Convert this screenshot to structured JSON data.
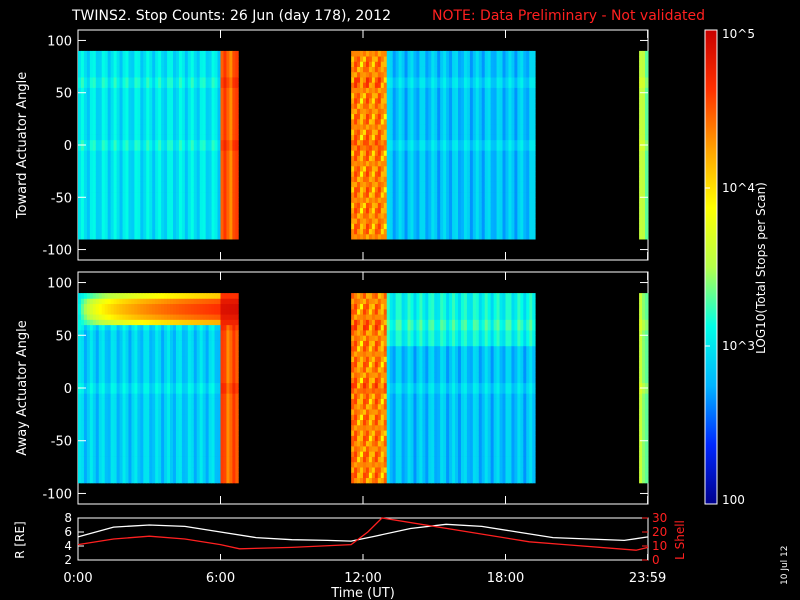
{
  "header": {
    "title": "TWINS2. Stop Counts: 26 Jun (day 178), 2012",
    "note": "NOTE: Data Preliminary - Not validated",
    "note_color": "#ff2020"
  },
  "side_stamp": "10 Jul 12",
  "colorbar": {
    "label": "LOG10(Total Stops per Scan)",
    "ticks": [
      "100",
      "10^3",
      "10^4",
      "10^5"
    ],
    "tick_values": [
      100,
      1000,
      10000,
      100000
    ],
    "scale": "log",
    "range": [
      100,
      100000
    ],
    "colormap": [
      "#00008c",
      "#0028ff",
      "#00b4ff",
      "#00ffe6",
      "#b4ff4b",
      "#ffff00",
      "#ffa000",
      "#ff3000",
      "#c80000"
    ]
  },
  "panels": {
    "toward": {
      "ylabel": "Toward Actuator Angle"
    },
    "away": {
      "ylabel": "Away Actuator Angle"
    },
    "orbit": {
      "left_label": "R [RE]",
      "right_label": "L Shell",
      "r_color": "#ffffff",
      "l_color": "#ff2020"
    }
  },
  "xaxis": {
    "label": "Time (UT)",
    "ticks": [
      "0:00",
      "6:00",
      "12:00",
      "18:00",
      "23:59"
    ],
    "tick_hours": [
      0,
      6,
      12,
      18,
      23.983
    ]
  },
  "chart_data": [
    {
      "type": "heatmap",
      "title": "TWINS2. Stop Counts: 26 Jun (day 178), 2012",
      "xlabel": "Time (UT)",
      "ylabel": "Toward Actuator Angle",
      "xlim_hours": [
        0,
        24
      ],
      "ylim": [
        -110,
        110
      ],
      "y_ticks": [
        -100,
        -50,
        0,
        50,
        100
      ],
      "data_range_deg": [
        -90,
        90
      ],
      "coverage_hours": [
        [
          0,
          6.8
        ],
        [
          11.5,
          19.3
        ],
        [
          23.6,
          24
        ]
      ],
      "approx_counts_by_interval": [
        {
          "hours": [
            0,
            6.0
          ],
          "level": 1000
        },
        {
          "hours": [
            6.0,
            6.8
          ],
          "level": 30000
        },
        {
          "hours": [
            11.5,
            13.0
          ],
          "level": 20000
        },
        {
          "hours": [
            13.0,
            19.3
          ],
          "level": 700
        },
        {
          "hours": [
            23.6,
            24
          ],
          "level": 3000
        }
      ]
    },
    {
      "type": "heatmap",
      "xlabel": "Time (UT)",
      "ylabel": "Away Actuator Angle",
      "xlim_hours": [
        0,
        24
      ],
      "ylim": [
        -110,
        110
      ],
      "y_ticks": [
        -100,
        -50,
        0,
        50,
        100
      ],
      "data_range_deg": [
        -90,
        90
      ],
      "coverage_hours": [
        [
          0,
          6.8
        ],
        [
          11.5,
          19.3
        ],
        [
          23.6,
          24
        ]
      ],
      "approx_counts_by_interval": [
        {
          "hours": [
            0,
            6.0
          ],
          "level": 800
        },
        {
          "hours": [
            6.0,
            6.8
          ],
          "level": 30000
        },
        {
          "hours": [
            11.5,
            13.0
          ],
          "level": 20000
        },
        {
          "hours": [
            13.0,
            19.3
          ],
          "level": 700
        },
        {
          "hours": [
            23.6,
            24
          ],
          "level": 3000
        }
      ],
      "high_angle_feature": {
        "angle_deg": [
          60,
          90
        ],
        "hours": [
          0,
          6.8
        ],
        "peak_level": 50000
      }
    },
    {
      "type": "line",
      "xlabel": "Time (UT)",
      "xlim_hours": [
        0,
        24
      ],
      "y_left": {
        "label": "R [RE]",
        "lim": [
          2,
          8
        ],
        "ticks": [
          2,
          4,
          6,
          8
        ]
      },
      "y_right": {
        "label": "L Shell",
        "lim": [
          0,
          30
        ],
        "ticks": [
          0,
          10,
          20,
          30
        ]
      },
      "series": [
        {
          "name": "R [RE]",
          "color": "#ffffff",
          "axis": "left",
          "x": [
            0,
            1.5,
            3,
            4.5,
            6,
            7.5,
            9,
            10.5,
            11.5,
            12.5,
            14,
            15.5,
            17,
            18.5,
            20,
            21.5,
            23,
            24
          ],
          "y": [
            5.3,
            6.7,
            7.0,
            6.8,
            6.0,
            5.2,
            4.9,
            4.8,
            4.7,
            5.4,
            6.5,
            7.1,
            6.8,
            6.0,
            5.2,
            5.0,
            4.8,
            5.3
          ]
        },
        {
          "name": "L Shell",
          "color": "#ff2020",
          "axis": "right",
          "x": [
            0,
            1.5,
            3,
            4.5,
            6,
            6.8,
            9,
            11.5,
            12.2,
            12.8,
            19.0,
            20.5,
            23.5,
            24
          ],
          "y": [
            11,
            15,
            17,
            15,
            11,
            8,
            9,
            11,
            20,
            30,
            13,
            11,
            7,
            9
          ]
        }
      ]
    }
  ]
}
